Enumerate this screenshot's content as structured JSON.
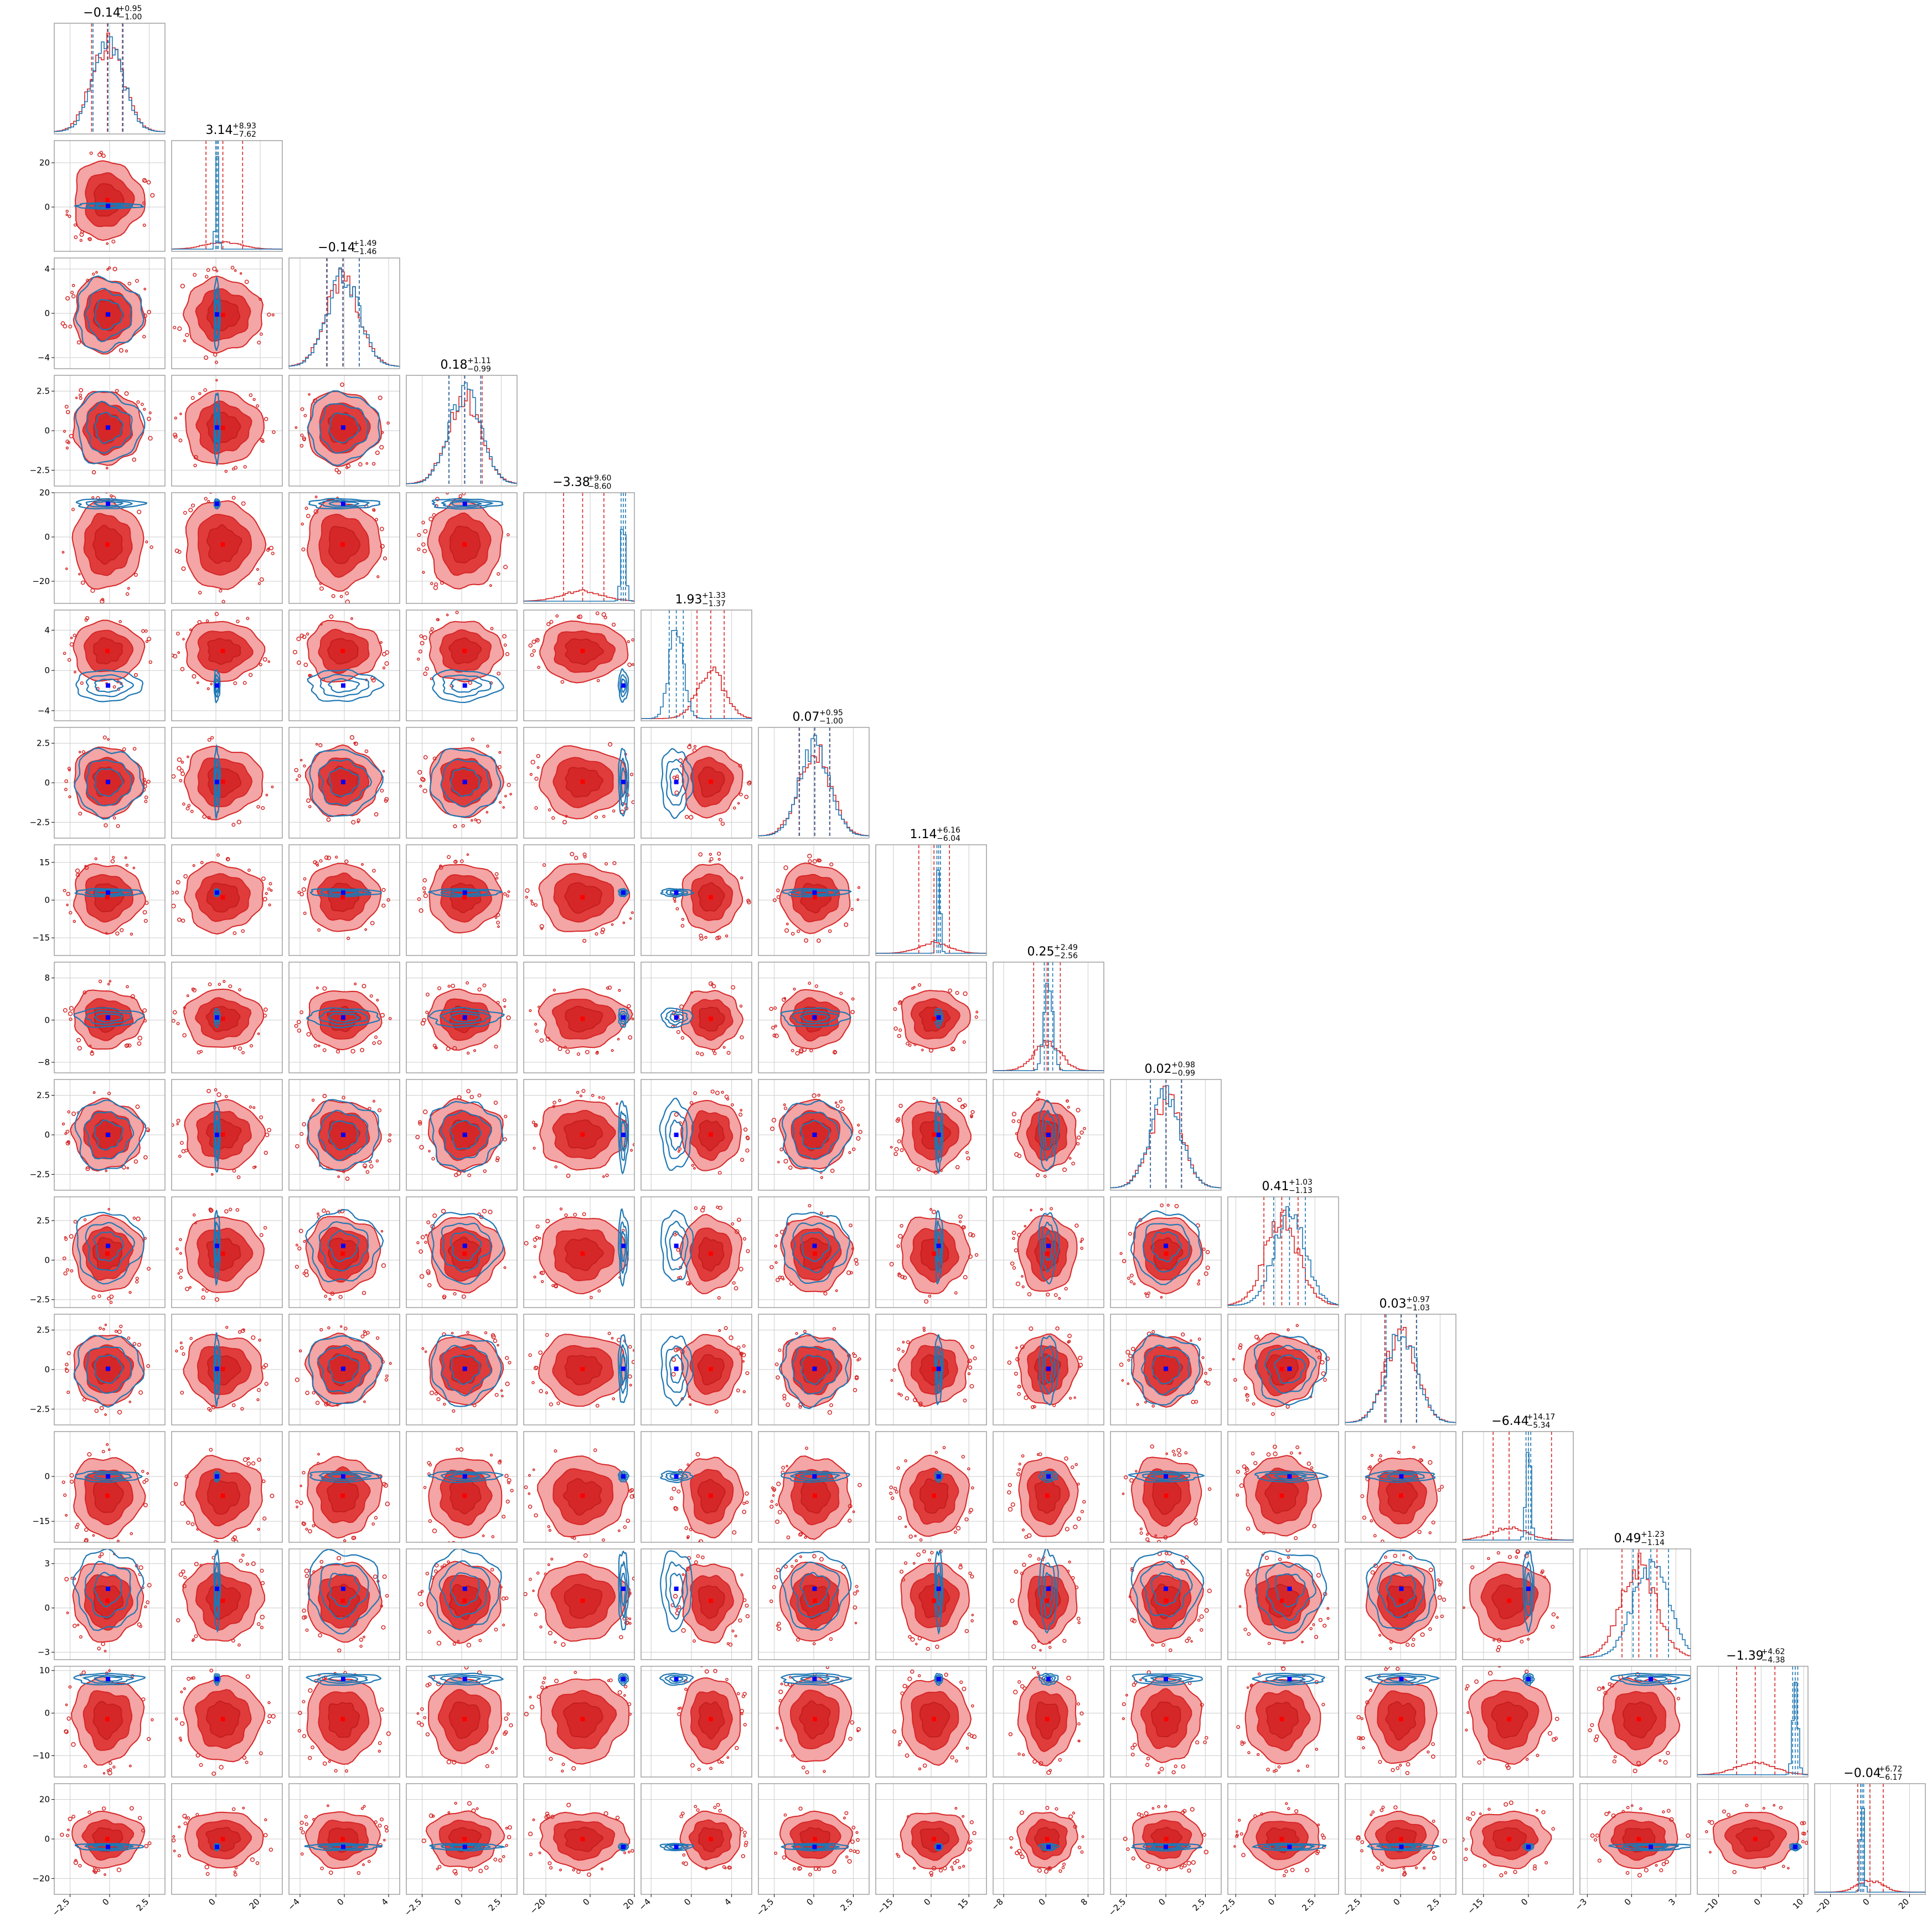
{
  "chart_data": {
    "type": "corner",
    "grid": true,
    "colors": {
      "posterior_a": "#d62728",
      "posterior_b": "#1f77b4",
      "truth_marker_a": "#ff0000",
      "truth_marker_b": "#0000ff",
      "frame": "#888888",
      "grid": "#cccccc"
    },
    "series": [
      {
        "color": "#d62728"
      },
      {
        "color": "#1f77b4"
      }
    ],
    "parameters": [
      {
        "title": "−0.14",
        "plus": "+0.95",
        "minus": "−1.00",
        "median_a": -0.14,
        "lo_a": 1.0,
        "hi_a": 0.95,
        "sd_b": 0.95,
        "med_b": -0.1,
        "sd_a": 1.0,
        "range": [
          -3.5,
          3.5
        ],
        "ticks": [
          -2.5,
          0.0,
          2.5
        ]
      },
      {
        "title": "3.14",
        "plus": "+8.93",
        "minus": "−7.62",
        "median_a": 3.14,
        "lo_a": 7.62,
        "hi_a": 8.93,
        "sd_b": 0.6,
        "med_b": 0.5,
        "sd_a": 8.0,
        "range": [
          -20,
          30
        ],
        "ticks": [
          0,
          20
        ]
      },
      {
        "title": "−0.14",
        "plus": "+1.49",
        "minus": "−1.46",
        "median_a": -0.14,
        "lo_a": 1.46,
        "hi_a": 1.49,
        "sd_b": 1.45,
        "med_b": -0.1,
        "sd_a": 1.5,
        "range": [
          -5,
          5
        ],
        "ticks": [
          -4,
          0,
          4
        ]
      },
      {
        "title": "0.18",
        "plus": "+1.11",
        "minus": "−0.99",
        "median_a": 0.18,
        "lo_a": 0.99,
        "hi_a": 1.11,
        "sd_b": 1.0,
        "med_b": 0.2,
        "sd_a": 1.05,
        "range": [
          -3.5,
          3.5
        ],
        "ticks": [
          -2.5,
          0.0,
          2.5
        ]
      },
      {
        "title": "−3.38",
        "plus": "+9.60",
        "minus": "−8.60",
        "median_a": -3.38,
        "lo_a": 8.6,
        "hi_a": 9.6,
        "sd_b": 1.0,
        "med_b": 15.0,
        "sd_a": 9.0,
        "range": [
          -30,
          20
        ],
        "ticks": [
          -20,
          0,
          20
        ]
      },
      {
        "title": "1.93",
        "plus": "+1.33",
        "minus": "−1.37",
        "median_a": 1.93,
        "lo_a": 1.37,
        "hi_a": 1.33,
        "sd_b": 0.7,
        "med_b": -1.5,
        "sd_a": 1.35,
        "range": [
          -5,
          6
        ],
        "ticks": [
          -4,
          0,
          4
        ]
      },
      {
        "title": "0.07",
        "plus": "+0.95",
        "minus": "−1.00",
        "median_a": 0.07,
        "lo_a": 1.0,
        "hi_a": 0.95,
        "sd_b": 0.95,
        "med_b": 0.05,
        "sd_a": 1.0,
        "range": [
          -3.5,
          3.5
        ],
        "ticks": [
          -2.5,
          0.0,
          2.5
        ]
      },
      {
        "title": "1.14",
        "plus": "+6.16",
        "minus": "−6.04",
        "median_a": 1.14,
        "lo_a": 6.04,
        "hi_a": 6.16,
        "sd_b": 0.7,
        "med_b": 3.0,
        "sd_a": 6.1,
        "range": [
          -22,
          22
        ],
        "ticks": [
          -15,
          0,
          15
        ]
      },
      {
        "title": "0.25",
        "plus": "+2.49",
        "minus": "−2.56",
        "median_a": 0.25,
        "lo_a": 2.56,
        "hi_a": 2.49,
        "sd_b": 0.8,
        "med_b": 0.5,
        "sd_a": 2.5,
        "range": [
          -10,
          11
        ],
        "ticks": [
          -8,
          0,
          8
        ]
      },
      {
        "title": "0.02",
        "plus": "+0.98",
        "minus": "−0.99",
        "median_a": 0.02,
        "lo_a": 0.99,
        "hi_a": 0.98,
        "sd_b": 0.98,
        "med_b": 0.0,
        "sd_a": 0.99,
        "range": [
          -3.5,
          3.5
        ],
        "ticks": [
          -2.5,
          0.0,
          2.5
        ]
      },
      {
        "title": "0.41",
        "plus": "+1.03",
        "minus": "−1.13",
        "median_a": 0.41,
        "lo_a": 1.13,
        "hi_a": 1.03,
        "sd_b": 1.0,
        "med_b": 0.9,
        "sd_a": 1.08,
        "range": [
          -3,
          4
        ],
        "ticks": [
          -2.5,
          0.0,
          2.5
        ]
      },
      {
        "title": "0.03",
        "plus": "+0.97",
        "minus": "−1.03",
        "median_a": 0.03,
        "lo_a": 1.03,
        "hi_a": 0.97,
        "sd_b": 0.97,
        "med_b": 0.05,
        "sd_a": 1.0,
        "range": [
          -3.5,
          3.5
        ],
        "ticks": [
          -2.5,
          0.0,
          2.5
        ]
      },
      {
        "title": "−6.44",
        "plus": "+14.17",
        "minus": "−5.34",
        "median_a": -6.44,
        "lo_a": 5.34,
        "hi_a": 14.17,
        "sd_b": 0.8,
        "med_b": 0.0,
        "sd_a": 6.0,
        "range": [
          -22,
          15
        ],
        "ticks": [
          -15,
          0
        ]
      },
      {
        "title": "0.49",
        "plus": "+1.23",
        "minus": "−1.14",
        "median_a": 0.49,
        "lo_a": 1.14,
        "hi_a": 1.23,
        "sd_b": 1.2,
        "med_b": 1.3,
        "sd_a": 1.2,
        "range": [
          -3.5,
          4
        ],
        "ticks": [
          -3,
          0,
          3
        ]
      },
      {
        "title": "−1.39",
        "plus": "+4.62",
        "minus": "−4.38",
        "median_a": -1.39,
        "lo_a": 4.38,
        "hi_a": 4.62,
        "sd_b": 0.6,
        "med_b": 8.0,
        "sd_a": 4.5,
        "range": [
          -15,
          11
        ],
        "ticks": [
          -10,
          0,
          10
        ]
      },
      {
        "title": "−0.04",
        "plus": "+6.72",
        "minus": "−6.17",
        "median_a": -0.04,
        "lo_a": 6.17,
        "hi_a": 6.72,
        "sd_b": 0.8,
        "med_b": -4.0,
        "sd_a": 6.4,
        "range": [
          -28,
          28
        ],
        "ticks": [
          -20,
          0,
          20
        ]
      }
    ]
  }
}
